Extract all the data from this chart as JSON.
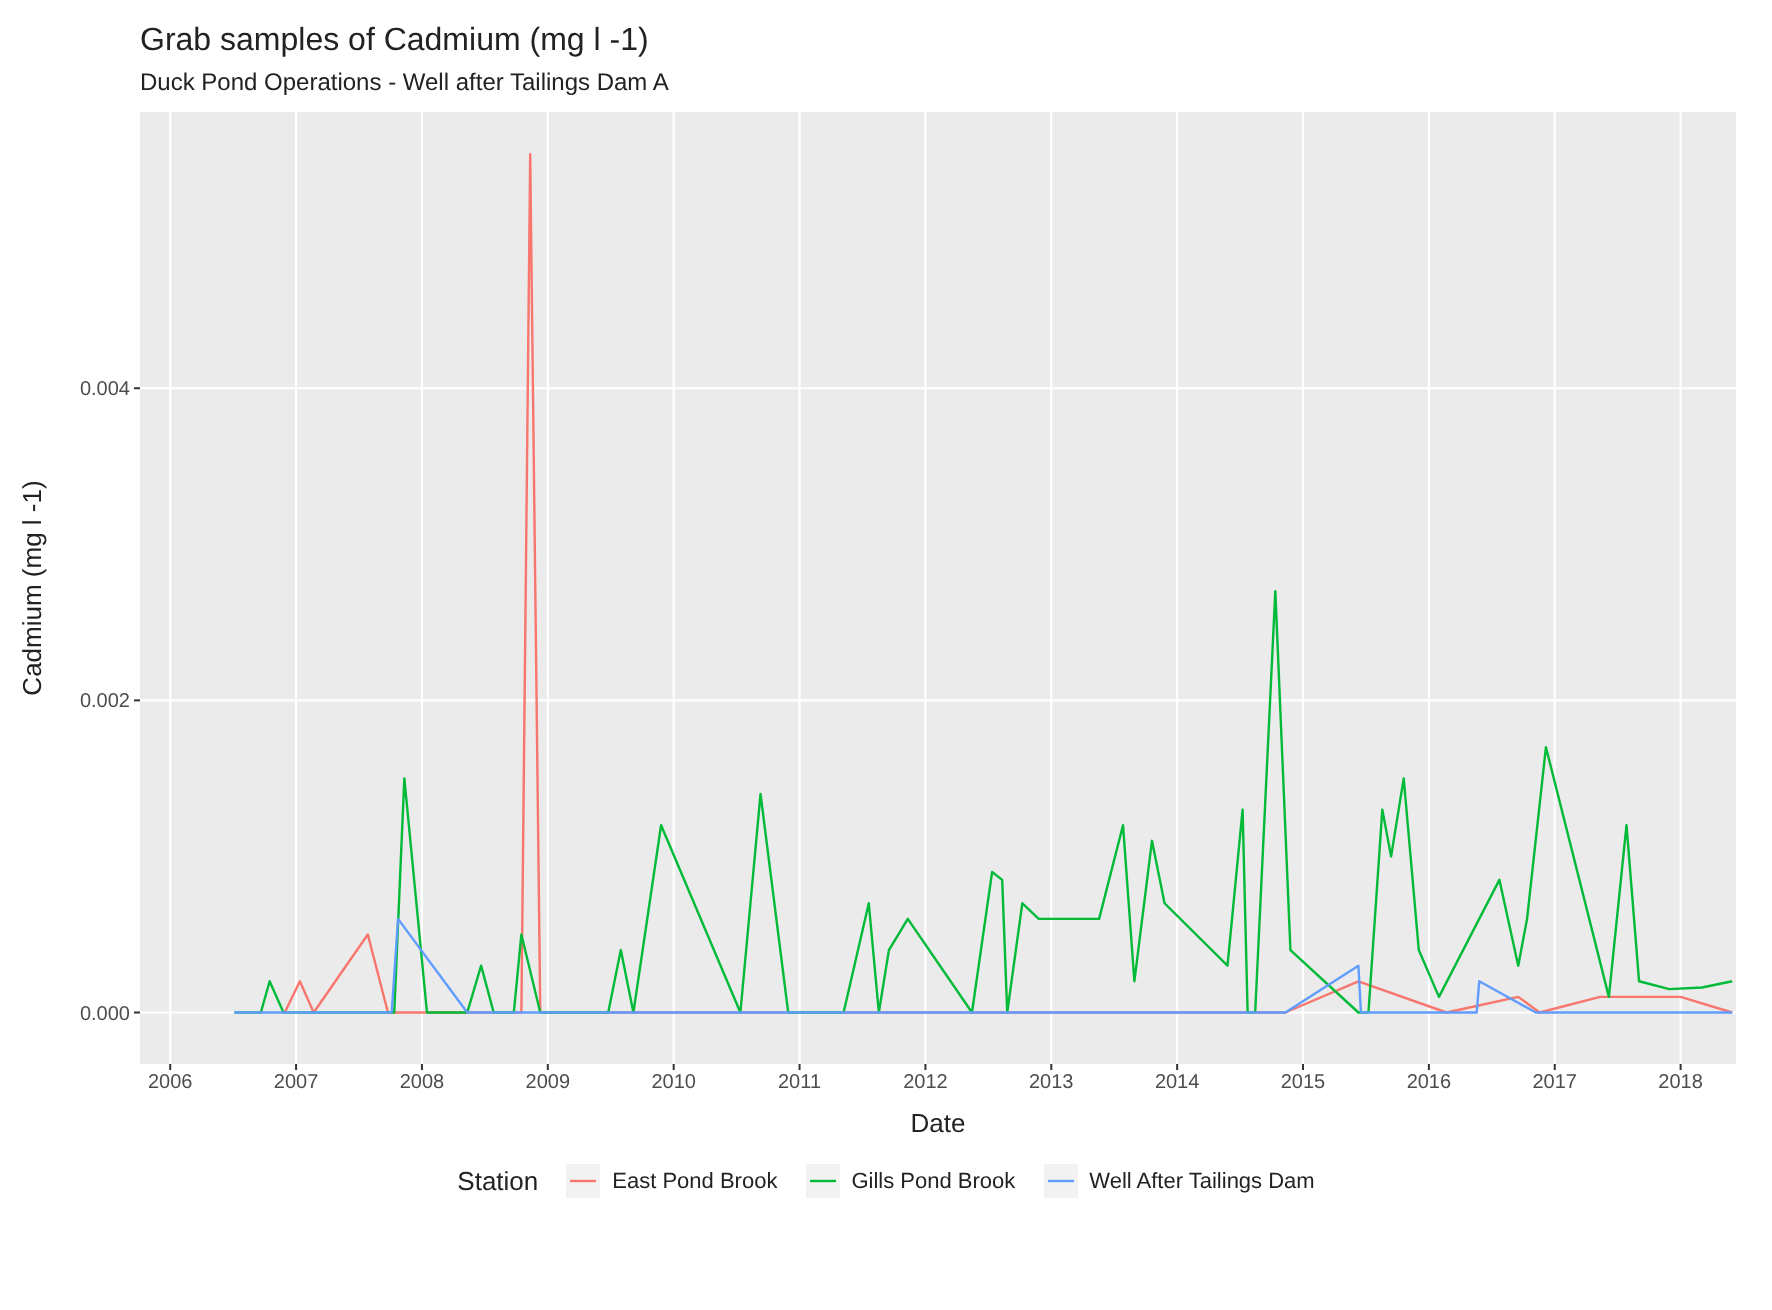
{
  "chart_data": {
    "type": "line",
    "title": "Grab samples of Cadmium (mg l -1)",
    "subtitle": "Duck Pond Operations - Well after Tailings Dam A",
    "xlabel": "Date",
    "ylabel": "Cadmium (mg l -1)",
    "legend_title": "Station",
    "legend": "bottom",
    "grid": true,
    "xlim": [
      2005.76,
      2018.44
    ],
    "xticks": [
      2006,
      2007,
      2008,
      2009,
      2010,
      2011,
      2012,
      2013,
      2014,
      2015,
      2016,
      2017,
      2018
    ],
    "ylim": [
      -0.00033,
      0.00577
    ],
    "yticks": [
      {
        "value": 0,
        "label": "0.000"
      },
      {
        "value": 0.002,
        "label": "0.002"
      },
      {
        "value": 0.004,
        "label": "0.004"
      }
    ],
    "series": [
      {
        "name": "East Pond Brook",
        "color": "#f8766d",
        "x": [
          2006.91,
          2007.03,
          2007.14,
          2007.57,
          2007.73,
          2008.79,
          2008.86,
          2008.94,
          2014.86,
          2015.44,
          2016.14,
          2016.71,
          2016.88,
          2017.36,
          2018.0,
          2018.41
        ],
        "values": [
          0,
          0.0002,
          0,
          0.0005,
          0,
          0,
          0.0055,
          0,
          0,
          0.0002,
          0,
          0.0001,
          0,
          0.0001,
          0.0001,
          0
        ]
      },
      {
        "name": "Gills Pond Brook",
        "color": "#00ba38",
        "x": [
          2006.51,
          2006.72,
          2006.79,
          2006.9,
          2007.78,
          2007.86,
          2008.04,
          2008.36,
          2008.47,
          2008.57,
          2008.73,
          2008.79,
          2008.94,
          2009.48,
          2009.58,
          2009.68,
          2009.9,
          2010.53,
          2010.69,
          2010.91,
          2011.35,
          2011.55,
          2011.63,
          2011.71,
          2011.86,
          2012.37,
          2012.53,
          2012.61,
          2012.65,
          2012.77,
          2012.9,
          2013.38,
          2013.57,
          2013.66,
          2013.8,
          2013.9,
          2014.4,
          2014.52,
          2014.56,
          2014.62,
          2014.78,
          2014.9,
          2015.44,
          2015.52,
          2015.63,
          2015.7,
          2015.8,
          2015.92,
          2016.08,
          2016.56,
          2016.71,
          2016.78,
          2016.93,
          2017.43,
          2017.57,
          2017.67,
          2017.91,
          2018.17,
          2018.41
        ],
        "values": [
          0,
          0,
          0.0002,
          0,
          0,
          0.0015,
          0,
          0,
          0.0003,
          0,
          0,
          0.0005,
          0,
          0,
          0.0004,
          0,
          0.0012,
          0,
          0.0014,
          0,
          0,
          0.0007,
          0,
          0.0004,
          0.0006,
          0,
          0.0009,
          0.00085,
          0,
          0.0007,
          0.0006,
          0.0006,
          0.0012,
          0.0002,
          0.0011,
          0.0007,
          0.0003,
          0.0013,
          0,
          0,
          0.0027,
          0.0004,
          0,
          0,
          0.0013,
          0.001,
          0.0015,
          0.0004,
          0.0001,
          0.00085,
          0.0003,
          0.0006,
          0.0017,
          0.0001,
          0.0012,
          0.0002,
          0.00015,
          0.00016,
          0.0002
        ]
      },
      {
        "name": "Well After Tailings Dam",
        "color": "#619cff",
        "x": [
          2006.51,
          2007.76,
          2007.81,
          2008.36,
          2014.86,
          2015.44,
          2015.46,
          2016.38,
          2016.4,
          2016.85,
          2018.41
        ],
        "values": [
          0,
          0,
          0.0006,
          0,
          0,
          0.0003,
          0,
          0,
          0.0002,
          0,
          0
        ]
      }
    ]
  }
}
